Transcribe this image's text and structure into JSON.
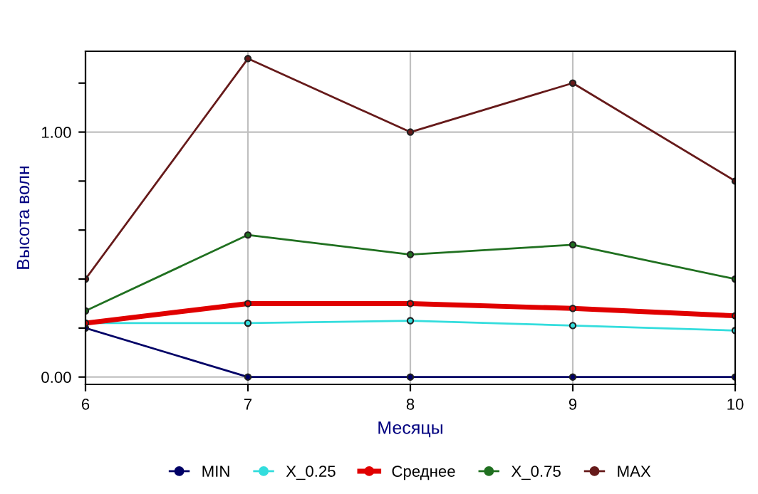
{
  "chart_data": {
    "type": "line",
    "xlabel": "Месяцы",
    "ylabel": "Высота волн",
    "x": [
      6,
      7,
      8,
      9,
      10
    ],
    "series": [
      {
        "name": "MIN",
        "color": "#000066",
        "values": [
          0.2,
          0,
          0,
          0,
          0
        ]
      },
      {
        "name": "X_0.25",
        "color": "#33dddd",
        "values": [
          0.22,
          0.22,
          0.23,
          0.21,
          0.19
        ]
      },
      {
        "name": "Среднее",
        "color": "#e00000",
        "values": [
          0.22,
          0.3,
          0.3,
          0.28,
          0.25
        ]
      },
      {
        "name": "X_0.75",
        "color": "#207020",
        "values": [
          0.27,
          0.58,
          0.5,
          0.54,
          0.4
        ]
      },
      {
        "name": "MAX",
        "color": "#661a1a",
        "values": [
          0.4,
          1.3,
          1.0,
          1.2,
          0.8
        ]
      }
    ],
    "xlim": [
      6,
      10
    ],
    "xticks": [
      6,
      7,
      8,
      9,
      10
    ],
    "ylim": [
      -0.03,
      1.33
    ],
    "yticks": [
      {
        "value": 0,
        "label": "0.00"
      },
      {
        "value": 0.2,
        "label": null
      },
      {
        "value": 0.4,
        "label": null
      },
      {
        "value": 0.6,
        "label": null
      },
      {
        "value": 0.8,
        "label": null
      },
      {
        "value": 1,
        "label": "1.00"
      },
      {
        "value": 1.2,
        "label": null
      }
    ],
    "grid": true,
    "legend": "bottom",
    "marker": "circle",
    "line_style": "solid"
  }
}
